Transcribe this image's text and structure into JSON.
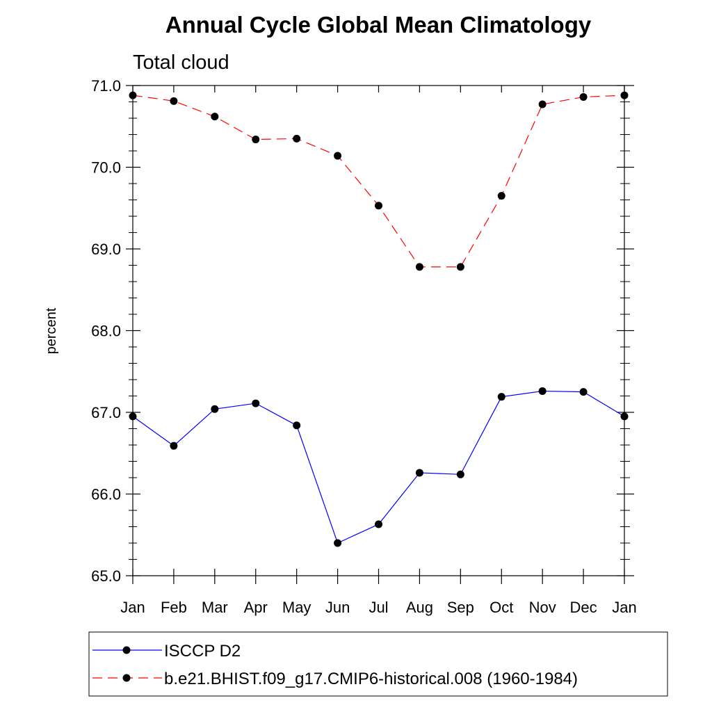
{
  "chart_data": {
    "type": "line",
    "title": "Annual Cycle Global Mean Climatology",
    "subtitle": "Total cloud",
    "xlabel": "",
    "ylabel": "percent",
    "categories": [
      "Jan",
      "Feb",
      "Mar",
      "Apr",
      "May",
      "Jun",
      "Jul",
      "Aug",
      "Sep",
      "Oct",
      "Nov",
      "Dec",
      "Jan"
    ],
    "ylim": [
      65.0,
      71.0
    ],
    "yticks": [
      "65.0",
      "66.0",
      "67.0",
      "68.0",
      "69.0",
      "70.0",
      "71.0"
    ],
    "grid": false,
    "legend_position": "bottom",
    "series": [
      {
        "name": "ISCCP D2",
        "color": "#0000ff",
        "style": "solid",
        "marker": "filled-circle",
        "values": [
          66.95,
          66.59,
          67.04,
          67.11,
          66.84,
          65.4,
          65.63,
          66.26,
          66.24,
          67.19,
          67.26,
          67.25,
          66.95
        ]
      },
      {
        "name": "b.e21.BHIST.f09_g17.CMIP6-historical.008 (1960-1984)",
        "color": "#ff0000",
        "style": "dashed",
        "marker": "filled-circle",
        "values": [
          70.88,
          70.81,
          70.62,
          70.34,
          70.35,
          70.14,
          69.53,
          68.78,
          68.78,
          69.65,
          70.77,
          70.86,
          70.88
        ]
      }
    ]
  }
}
